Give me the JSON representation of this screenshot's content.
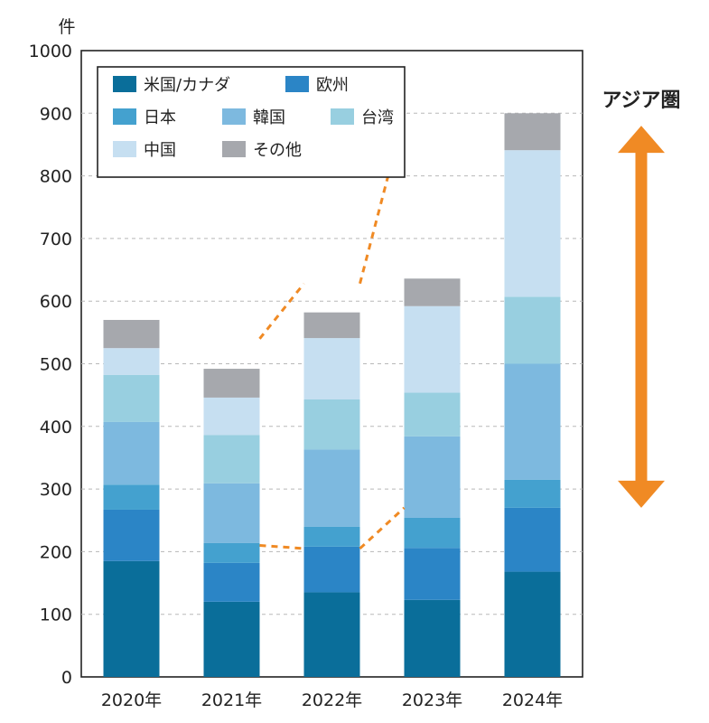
{
  "chart_data": {
    "type": "bar",
    "stacked": true,
    "y_unit_label": "件",
    "categories": [
      "2020年",
      "2021年",
      "2022年",
      "2023年",
      "2024年"
    ],
    "series": [
      {
        "name": "米国/カナダ",
        "color": "#0a6e9a",
        "values": [
          185,
          120,
          135,
          123,
          168
        ]
      },
      {
        "name": "欧州",
        "color": "#2b85c6",
        "values": [
          82,
          62,
          73,
          83,
          102
        ]
      },
      {
        "name": "日本",
        "color": "#44a1cf",
        "values": [
          40,
          32,
          32,
          48,
          45
        ]
      },
      {
        "name": "韓国",
        "color": "#7db9df",
        "values": [
          100,
          95,
          123,
          130,
          185
        ]
      },
      {
        "name": "台湾",
        "color": "#98cfe0",
        "values": [
          75,
          77,
          80,
          70,
          107
        ]
      },
      {
        "name": "中国",
        "color": "#c6dff1",
        "values": [
          43,
          60,
          98,
          138,
          234
        ]
      },
      {
        "name": "その他",
        "color": "#a6a8ad",
        "values": [
          45,
          46,
          41,
          44,
          59
        ]
      }
    ],
    "ylim": [
      0,
      1000
    ],
    "yticks": [
      0,
      100,
      200,
      300,
      400,
      500,
      600,
      700,
      800,
      900,
      1000
    ],
    "grid": true,
    "legend_position": "top-left",
    "annotation": {
      "label": "アジア圏",
      "color": "#f08a24",
      "arrow_range": [
        270,
        880
      ],
      "dashed_guides": {
        "lower": [
          182,
          210,
          205,
          270
        ],
        "upper": [
          445,
          540,
          628,
          898
        ]
      }
    }
  }
}
